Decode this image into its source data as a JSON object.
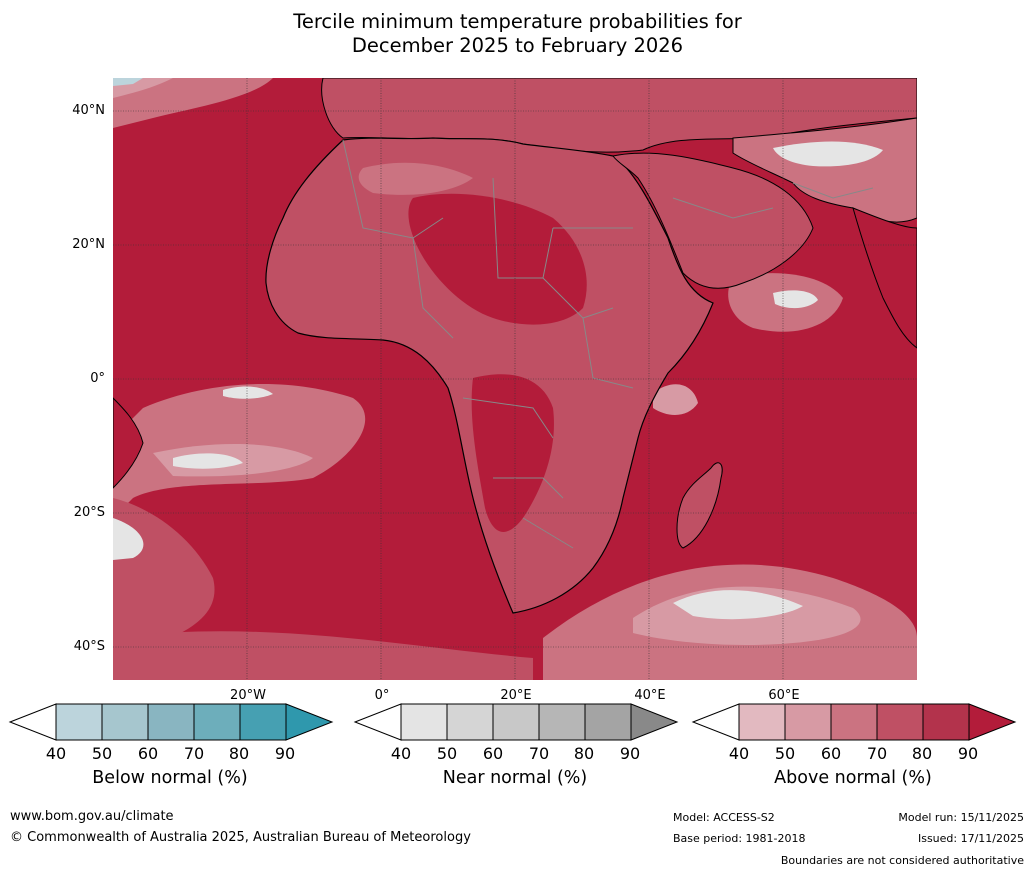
{
  "title": {
    "line1": "Tercile minimum temperature probabilities for",
    "line2": "December 2025 to February 2026"
  },
  "map": {
    "region": "Africa",
    "lat_labels": [
      "40°N",
      "20°N",
      "0°",
      "20°S",
      "40°S"
    ],
    "lon_labels": [
      "20°W",
      "0°",
      "20°E",
      "40°E",
      "60°E"
    ],
    "dominant_category": "Above normal",
    "colors": {
      "land_high": "#b31c3a",
      "above_40": "#e2b9c0",
      "above_50": "#d79aa4",
      "above_60": "#cb7381",
      "above_70": "#bf5064",
      "above_80": "#b3334c",
      "above_90": "#b31c3a",
      "near_40": "#e5e5e5",
      "below_40": "#bcd4dc",
      "coast": "#000000",
      "border": "#888888"
    }
  },
  "legends": [
    {
      "label": "Below normal (%)",
      "ticks": [
        "40",
        "50",
        "60",
        "70",
        "80",
        "90"
      ],
      "colors": [
        "#bcd4dc",
        "#a6c6ce",
        "#89b5c1",
        "#6daebb",
        "#46a0b2"
      ],
      "extend_color": "#2f98ad"
    },
    {
      "label": "Near normal (%)",
      "ticks": [
        "40",
        "50",
        "60",
        "70",
        "80",
        "90"
      ],
      "colors": [
        "#e4e4e4",
        "#d5d5d5",
        "#c8c8c8",
        "#b6b6b6",
        "#a4a4a4"
      ],
      "extend_color": "#898989"
    },
    {
      "label": "Above normal (%)",
      "ticks": [
        "40",
        "50",
        "60",
        "70",
        "80",
        "90"
      ],
      "colors": [
        "#e2b9c0",
        "#d79aa4",
        "#cb7381",
        "#bf5064",
        "#b3334c"
      ],
      "extend_color": "#b31c3a"
    }
  ],
  "footer": {
    "website": "www.bom.gov.au/climate",
    "copyright": "© Commonwealth of Australia 2025, Australian Bureau of Meteorology",
    "model": "Model: ACCESS-S2",
    "base_period": "Base period: 1981-2018",
    "model_run": "Model run: 15/11/2025",
    "issued": "Issued: 17/11/2025",
    "disclaimer": "Boundaries are not considered authoritative"
  }
}
